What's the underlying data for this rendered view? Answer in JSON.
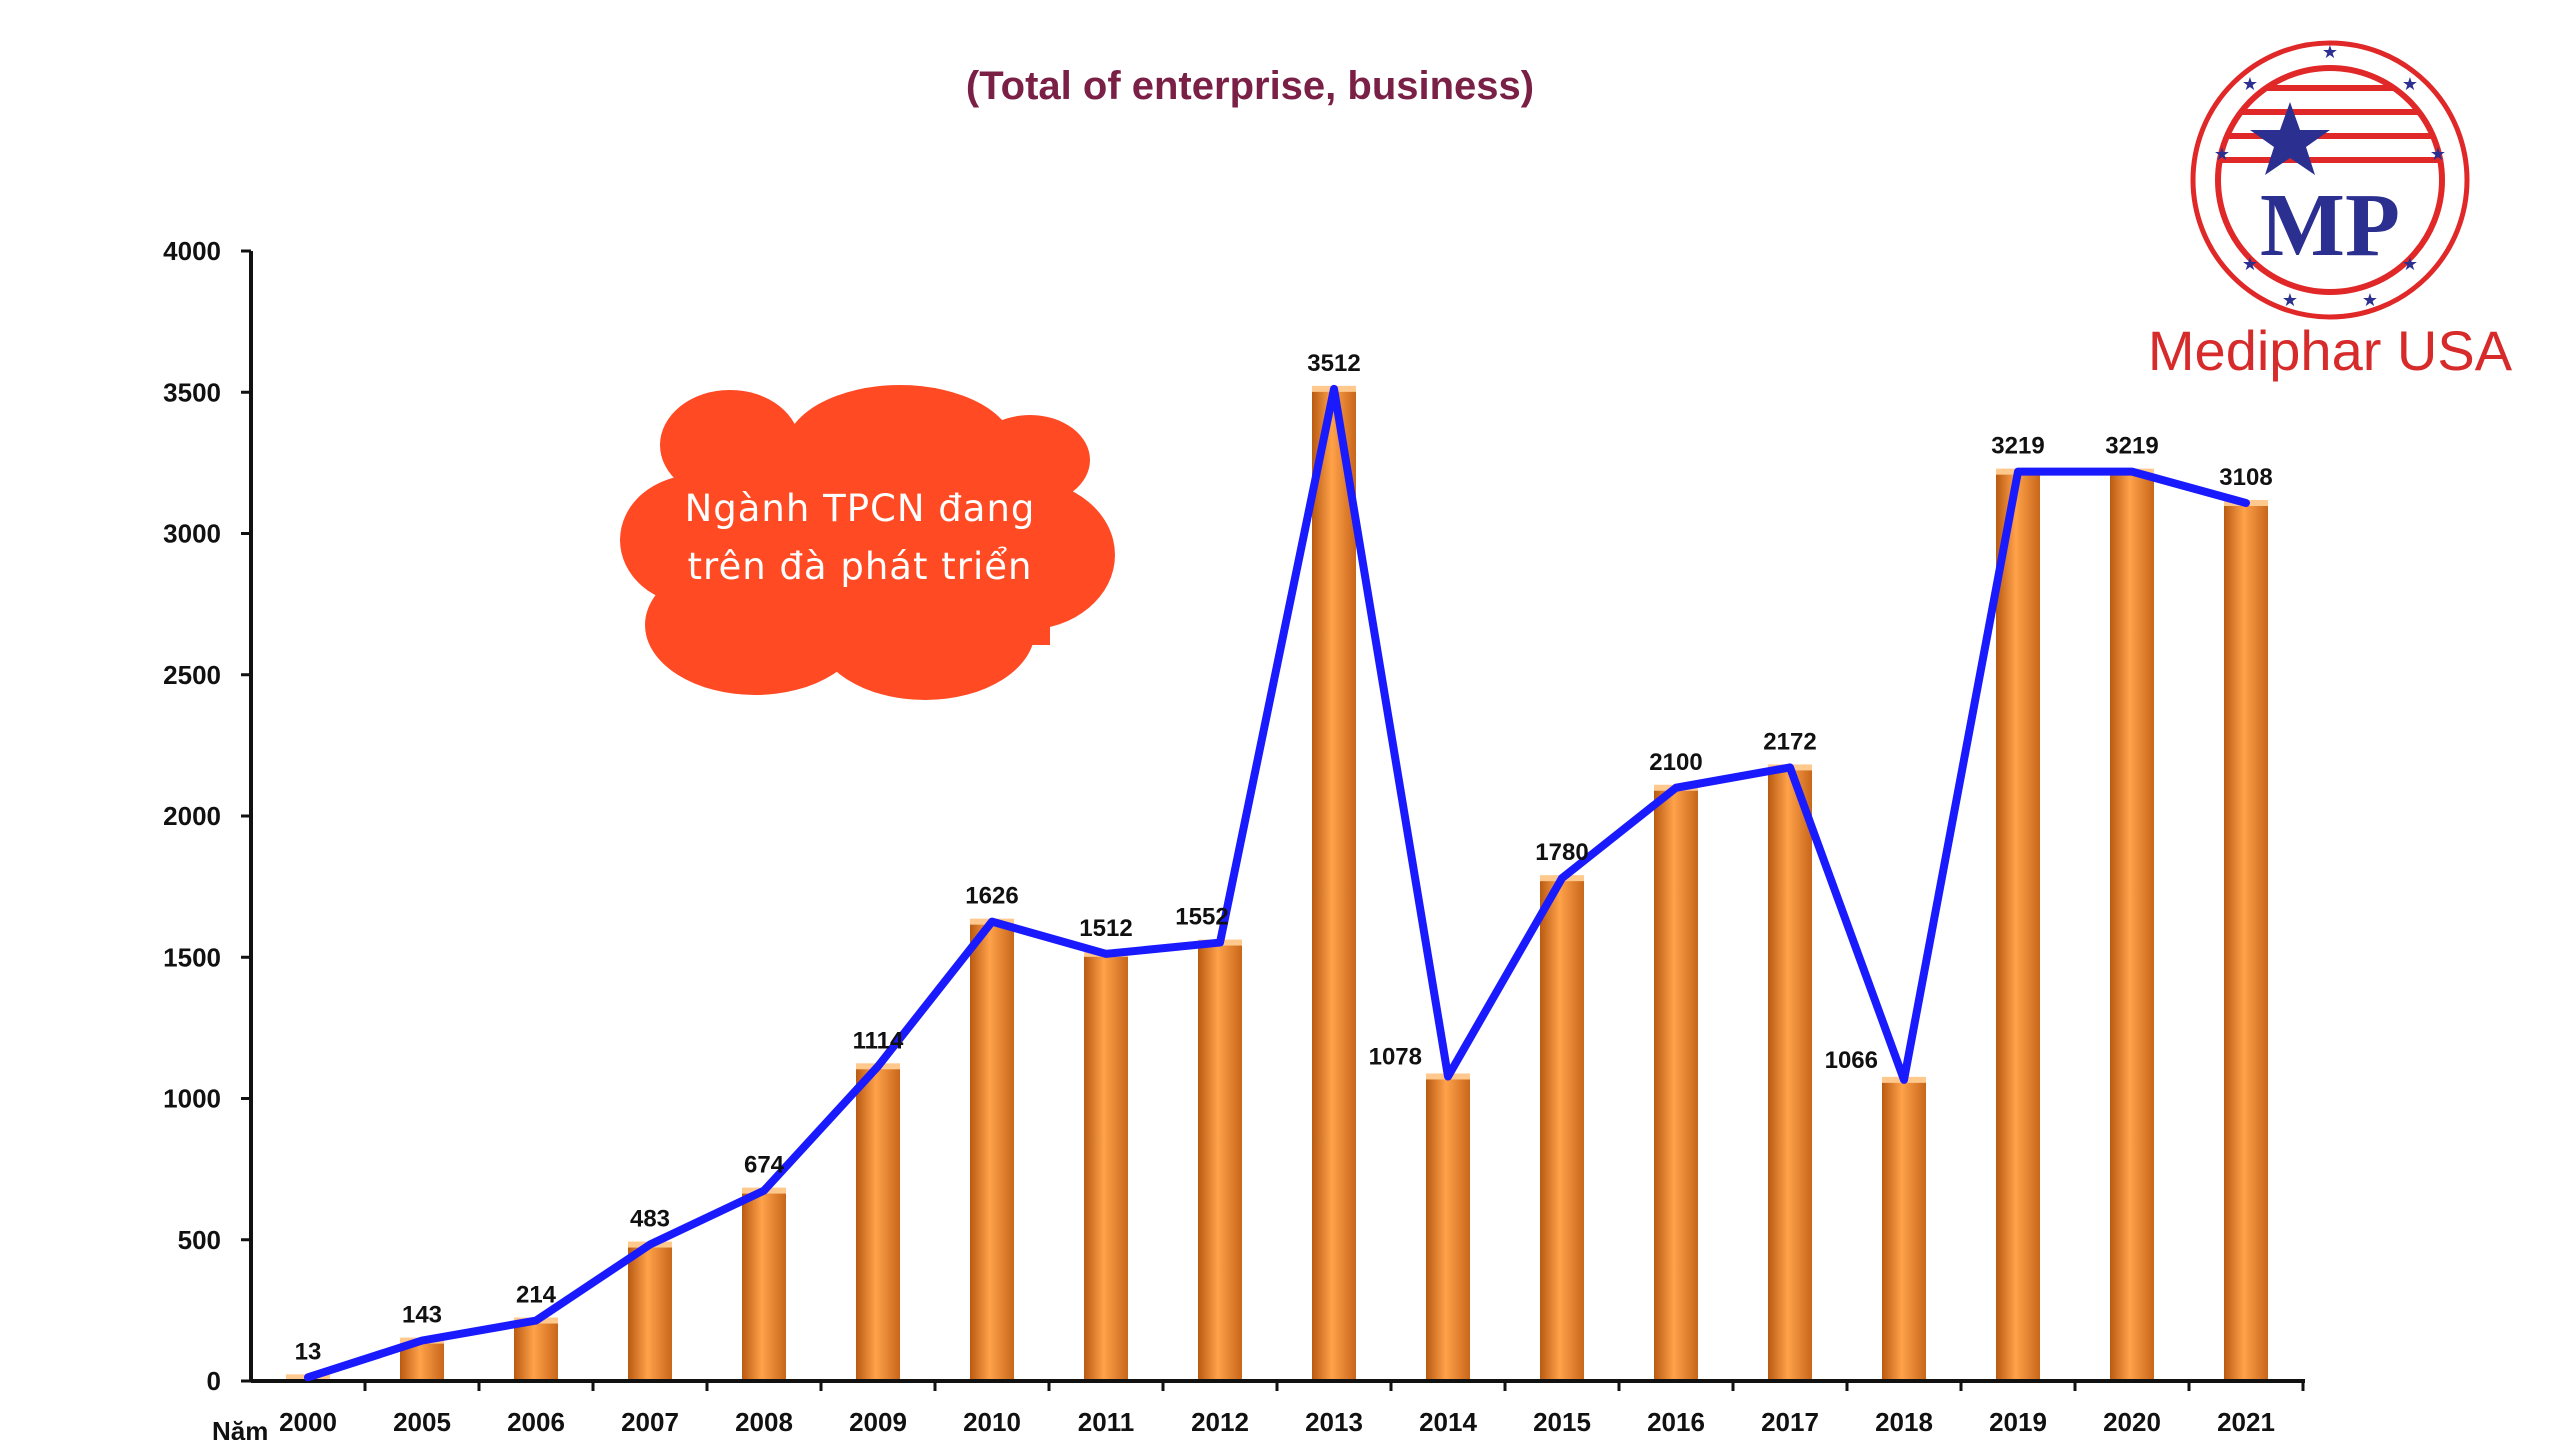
{
  "chart_data": {
    "type": "bar",
    "subtitle": "(Total of enterprise, business)",
    "xlabel": "Năm",
    "ylabel": "",
    "ylim": [
      0,
      4000
    ],
    "yticks": [
      0,
      500,
      1000,
      1500,
      2000,
      2500,
      3000,
      3500,
      4000
    ],
    "categories": [
      "2000",
      "2005",
      "2006",
      "2007",
      "2008",
      "2009",
      "2010",
      "2011",
      "2012",
      "2013",
      "2014",
      "2015",
      "2016",
      "2017",
      "2018",
      "2019",
      "2020",
      "2021"
    ],
    "series": [
      {
        "name": "bars",
        "type": "bar",
        "values": [
          13,
          143,
          214,
          483,
          674,
          1114,
          1626,
          1512,
          1552,
          3512,
          1078,
          1780,
          2100,
          2172,
          1066,
          3219,
          3219,
          3108
        ]
      },
      {
        "name": "trend",
        "type": "line",
        "values": [
          13,
          143,
          214,
          483,
          674,
          1114,
          1626,
          1512,
          1552,
          3512,
          1078,
          1780,
          2100,
          2172,
          1066,
          3219,
          3219,
          3108
        ]
      }
    ],
    "colors": {
      "bar": "#f08a2a",
      "bar_dark": "#b75a10",
      "line": "#1a1aff",
      "axis": "#111111"
    }
  },
  "callout": {
    "line1": "Ngành TPCN đang",
    "line2": "trên đà phát triển",
    "color": "#ff4a24"
  },
  "logo": {
    "brand": "Mediphar USA",
    "monogram": "MP",
    "ring_color": "#e02828",
    "accent_color": "#2b2f8f"
  }
}
